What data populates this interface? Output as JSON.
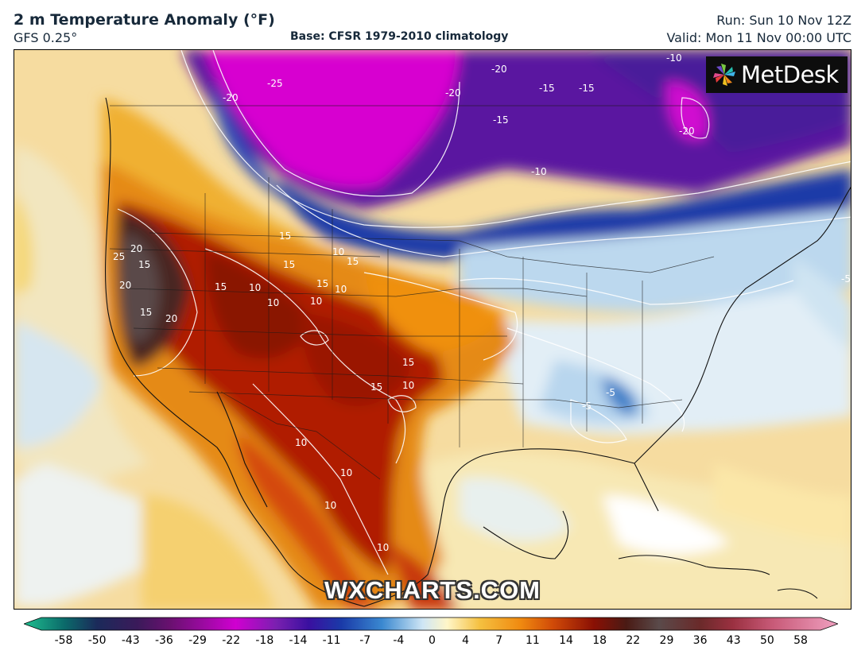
{
  "header": {
    "title": "2 m Temperature Anomaly (°F)",
    "model": "GFS 0.25°",
    "base": "Base: CFSR 1979-2010 climatology",
    "run": "Run: Sun 10 Nov 12Z",
    "valid": "Valid: Mon 11 Nov 00:00 UTC"
  },
  "logo": {
    "text": "MetDesk",
    "icon": "metdesk-pinwheel-icon"
  },
  "watermark": "WXCHARTS.COM",
  "legend": {
    "ticks": [
      "-58",
      "-50",
      "-43",
      "-36",
      "-29",
      "-22",
      "-18",
      "-14",
      "-11",
      "-7",
      "-4",
      "0",
      "4",
      "7",
      "11",
      "14",
      "18",
      "22",
      "29",
      "36",
      "43",
      "50",
      "58"
    ],
    "colors": [
      "#1fbf8f",
      "#0b6a6a",
      "#1b2a5a",
      "#3b1a5a",
      "#6a1070",
      "#9a0aa0",
      "#d000d0",
      "#7a20b0",
      "#3a10a0",
      "#1a3aa8",
      "#3a88d0",
      "#cfe6f5",
      "#fff6c8",
      "#f5c040",
      "#f08a10",
      "#d04a08",
      "#8a1004",
      "#4a1a14",
      "#5a4a4a",
      "#6a2a2a",
      "#9a3040",
      "#c85a78",
      "#f0a0c0"
    ]
  },
  "contour_labels": [
    {
      "text": "-25"
    },
    {
      "text": "-20"
    },
    {
      "text": "-20"
    },
    {
      "text": "-20"
    },
    {
      "text": "-15"
    },
    {
      "text": "-15"
    },
    {
      "text": "-15"
    },
    {
      "text": "-10"
    },
    {
      "text": "-10"
    },
    {
      "text": "-20"
    },
    {
      "text": "-5"
    },
    {
      "text": "-5"
    },
    {
      "text": "-5"
    },
    {
      "text": "15"
    },
    {
      "text": "10"
    },
    {
      "text": "15"
    },
    {
      "text": "15"
    },
    {
      "text": "15"
    },
    {
      "text": "10"
    },
    {
      "text": "10"
    },
    {
      "text": "10"
    },
    {
      "text": "10"
    },
    {
      "text": "15"
    },
    {
      "text": "15"
    },
    {
      "text": "10"
    },
    {
      "text": "15"
    },
    {
      "text": "10"
    },
    {
      "text": "10"
    },
    {
      "text": "10"
    },
    {
      "text": "10"
    },
    {
      "text": "20"
    },
    {
      "text": "25"
    },
    {
      "text": "15"
    },
    {
      "text": "20"
    },
    {
      "text": "15"
    },
    {
      "text": "20"
    }
  ]
}
